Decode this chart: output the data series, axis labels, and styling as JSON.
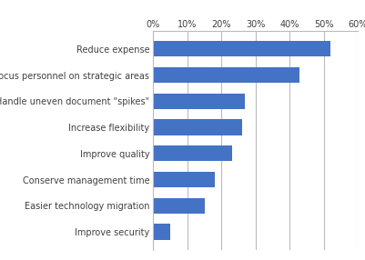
{
  "categories": [
    "Improve security",
    "Easier technology migration",
    "Conserve management time",
    "Improve quality",
    "Increase flexibility",
    "Handle uneven document \"spikes\"",
    "Focus personnel on strategic areas",
    "Reduce expense"
  ],
  "values": [
    0.05,
    0.15,
    0.18,
    0.23,
    0.26,
    0.27,
    0.43,
    0.52
  ],
  "bar_color": "#4472C4",
  "xlim": [
    0,
    0.6
  ],
  "xticks": [
    0.0,
    0.1,
    0.2,
    0.3,
    0.4,
    0.5,
    0.6
  ],
  "xtick_labels": [
    "0%",
    "10%",
    "20%",
    "30%",
    "40%",
    "50%",
    "60%"
  ],
  "label_fontsize": 7.0,
  "tick_fontsize": 7.0,
  "bar_height": 0.6,
  "grid_color": "#BBBBBB",
  "background_color": "#FFFFFF",
  "label_color": "#404040",
  "tick_label_color": "#404040"
}
